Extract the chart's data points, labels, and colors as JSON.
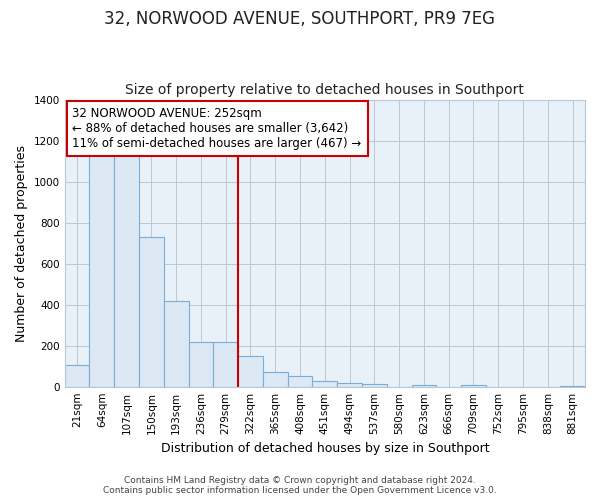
{
  "title": "32, NORWOOD AVENUE, SOUTHPORT, PR9 7EG",
  "subtitle": "Size of property relative to detached houses in Southport",
  "xlabel": "Distribution of detached houses by size in Southport",
  "ylabel": "Number of detached properties",
  "bin_labels": [
    "21sqm",
    "64sqm",
    "107sqm",
    "150sqm",
    "193sqm",
    "236sqm",
    "279sqm",
    "322sqm",
    "365sqm",
    "408sqm",
    "451sqm",
    "494sqm",
    "537sqm",
    "580sqm",
    "623sqm",
    "666sqm",
    "709sqm",
    "752sqm",
    "795sqm",
    "838sqm",
    "881sqm"
  ],
  "bar_heights": [
    105,
    1160,
    1160,
    730,
    420,
    220,
    220,
    150,
    70,
    50,
    30,
    20,
    15,
    0,
    10,
    0,
    10,
    0,
    0,
    0,
    5
  ],
  "bar_color": "#dce9f5",
  "bar_edge_color": "#7aaed4",
  "property_line_x": 6.5,
  "annotation_line1": "32 NORWOOD AVENUE: 252sqm",
  "annotation_line2": "← 88% of detached houses are smaller (3,642)",
  "annotation_line3": "11% of semi-detached houses are larger (467) →",
  "annotation_box_color": "#ffffff",
  "annotation_box_edge_color": "#cc0000",
  "property_vline_color": "#cc0000",
  "ylim": [
    0,
    1400
  ],
  "yticks": [
    0,
    200,
    400,
    600,
    800,
    1000,
    1200,
    1400
  ],
  "footer_line1": "Contains HM Land Registry data © Crown copyright and database right 2024.",
  "footer_line2": "Contains public sector information licensed under the Open Government Licence v3.0.",
  "plot_bg_color": "#e8f0f8",
  "figure_bg_color": "#ffffff",
  "grid_color": "#b8c8d8",
  "title_fontsize": 12,
  "subtitle_fontsize": 10,
  "axis_label_fontsize": 9,
  "tick_fontsize": 7.5,
  "annotation_fontsize": 8.5,
  "footer_fontsize": 6.5
}
